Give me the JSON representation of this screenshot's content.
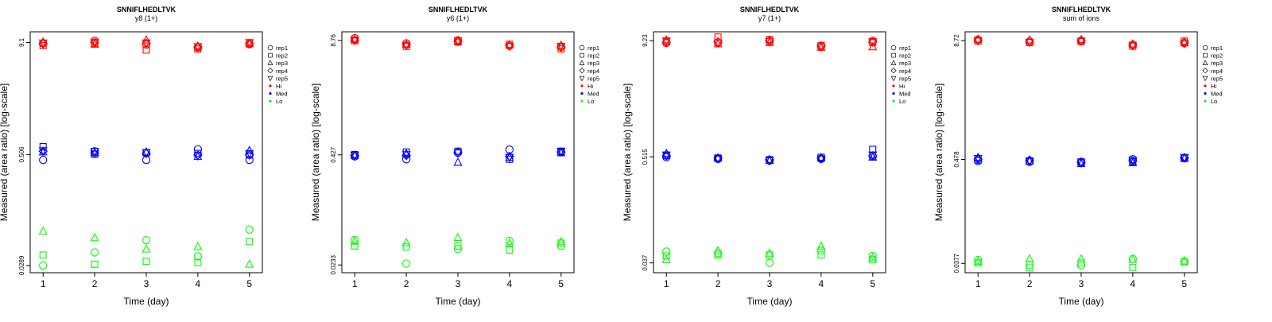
{
  "panels": [
    {
      "peptide": "SNNIFLHEDLTVK",
      "subtitle": "y8 (1+)",
      "tick_labels": [
        "0.0289",
        "0.506",
        "9.1"
      ]
    },
    {
      "peptide": "SNNIFLHEDLTVK",
      "subtitle": "y6 (1+)",
      "tick_labels": [
        "0.0233",
        "0.427",
        "8.76"
      ]
    },
    {
      "peptide": "SNNIFLHEDLTVK",
      "subtitle": "y7 (1+)",
      "tick_labels": [
        "0.037",
        "0.515",
        "9.23"
      ]
    },
    {
      "peptide": "SNNIFLHEDLTVK",
      "subtitle": "sum of ions",
      "tick_labels": [
        "0.0377",
        "0.478",
        "8.72"
      ]
    }
  ],
  "legend": {
    "replicates": [
      {
        "label": "rep1",
        "symbol": "circle"
      },
      {
        "label": "rep2",
        "symbol": "square"
      },
      {
        "label": "rep3",
        "symbol": "triangle"
      },
      {
        "label": "rep4",
        "symbol": "diamond"
      },
      {
        "label": "rep5",
        "symbol": "triangle-down"
      }
    ],
    "levels": [
      {
        "label": "Hi",
        "color": "#ff0000"
      },
      {
        "label": "Med",
        "color": "#0000ff"
      },
      {
        "label": "Lo",
        "color": "#00ff00"
      }
    ]
  },
  "chart_data": [
    {
      "type": "scatter",
      "title": "SNNIFLHEDLTVK",
      "subtitle": "y8 (1+)",
      "xlabel": "Time (day)",
      "ylabel": "Measured (area ratio) [log-scale]",
      "x_ticks": [
        1,
        2,
        3,
        4,
        5
      ],
      "y_ticks": [
        0.0289,
        0.506,
        9.1
      ],
      "ylim": [
        0.024,
        12.0
      ],
      "xlim": [
        0.75,
        5.25
      ],
      "series": [
        {
          "name": "Hi",
          "level": "Hi",
          "points": [
            {
              "rep": "rep1",
              "values": [
                8.9,
                9.5,
                8.6,
                8.0,
                8.7
              ]
            },
            {
              "rep": "rep2",
              "values": [
                8.4,
                8.9,
                7.5,
                7.7,
                9.0
              ]
            },
            {
              "rep": "rep3",
              "values": [
                9.2,
                8.7,
                9.7,
                8.3,
                8.8
              ]
            },
            {
              "rep": "rep4",
              "values": [
                8.8,
                9.1,
                8.9,
                8.1,
                8.9
              ]
            },
            {
              "rep": "rep5",
              "values": [
                9.0,
                9.2,
                9.0,
                8.2,
                9.1
              ]
            }
          ]
        },
        {
          "name": "Med",
          "level": "Med",
          "points": [
            {
              "rep": "rep1",
              "values": [
                0.44,
                0.55,
                0.44,
                0.58,
                0.44
              ]
            },
            {
              "rep": "rep2",
              "values": [
                0.62,
                0.51,
                0.53,
                0.52,
                0.5
              ]
            },
            {
              "rep": "rep3",
              "values": [
                0.54,
                0.53,
                0.54,
                0.48,
                0.56
              ]
            },
            {
              "rep": "rep4",
              "values": [
                0.55,
                0.52,
                0.52,
                0.5,
                0.5
              ]
            },
            {
              "rep": "rep5",
              "values": [
                0.56,
                0.55,
                0.53,
                0.49,
                0.52
              ]
            }
          ]
        },
        {
          "name": "Lo",
          "level": "Lo",
          "points": [
            {
              "rep": "rep1",
              "values": [
                0.0289,
                0.0405,
                0.0555,
                0.0365,
                0.073
              ]
            },
            {
              "rep": "rep2",
              "values": [
                0.0378,
                0.0298,
                0.0322,
                0.0312,
                0.0535
              ]
            },
            {
              "rep": "rep3",
              "values": [
                0.07,
                0.059,
                0.044,
                0.047,
                0.0298
              ]
            }
          ]
        }
      ]
    },
    {
      "type": "scatter",
      "title": "SNNIFLHEDLTVK",
      "subtitle": "y6 (1+)",
      "xlabel": "Time (day)",
      "ylabel": "Measured (area ratio) [log-scale]",
      "x_ticks": [
        1,
        2,
        3,
        4,
        5
      ],
      "y_ticks": [
        0.0233,
        0.427,
        8.76
      ],
      "ylim": [
        0.019,
        11.0
      ],
      "xlim": [
        0.75,
        5.25
      ],
      "series": [
        {
          "name": "Hi",
          "level": "Hi",
          "points": [
            {
              "rep": "rep1",
              "values": [
                9.3,
                8.1,
                8.8,
                7.6,
                7.4
              ]
            },
            {
              "rep": "rep2",
              "values": [
                8.7,
                7.5,
                8.4,
                7.9,
                7.0
              ]
            },
            {
              "rep": "rep3",
              "values": [
                9.0,
                7.9,
                8.6,
                7.8,
                7.7
              ]
            },
            {
              "rep": "rep4",
              "values": [
                8.8,
                7.8,
                8.5,
                7.7,
                7.3
              ]
            },
            {
              "rep": "rep5",
              "values": [
                8.9,
                7.7,
                8.7,
                7.5,
                7.5
              ]
            }
          ]
        },
        {
          "name": "Med",
          "level": "Med",
          "points": [
            {
              "rep": "rep1",
              "values": [
                0.41,
                0.38,
                0.45,
                0.49,
                0.46
              ]
            },
            {
              "rep": "rep2",
              "values": [
                0.43,
                0.46,
                0.47,
                0.38,
                0.47
              ]
            },
            {
              "rep": "rep3",
              "values": [
                0.42,
                0.44,
                0.35,
                0.4,
                0.45
              ]
            },
            {
              "rep": "rep4",
              "values": [
                0.42,
                0.42,
                0.46,
                0.41,
                0.46
              ]
            },
            {
              "rep": "rep5",
              "values": [
                0.42,
                0.43,
                0.45,
                0.4,
                0.47
              ]
            }
          ]
        },
        {
          "name": "Lo",
          "level": "Lo",
          "points": [
            {
              "rep": "rep1",
              "values": [
                0.045,
                0.0242,
                0.0355,
                0.044,
                0.0385
              ]
            },
            {
              "rep": "rep2",
              "values": [
                0.0385,
                0.0375,
                0.0385,
                0.0345,
                0.0415
              ]
            },
            {
              "rep": "rep3",
              "values": [
                0.0435,
                0.042,
                0.048,
                0.0415,
                0.043
              ]
            }
          ]
        }
      ]
    },
    {
      "type": "scatter",
      "title": "SNNIFLHEDLTVK",
      "subtitle": "y7 (1+)",
      "xlabel": "Time (day)",
      "ylabel": "Measured (area ratio) [log-scale]",
      "x_ticks": [
        1,
        2,
        3,
        4,
        5
      ],
      "y_ticks": [
        0.037,
        0.515,
        9.23
      ],
      "ylim": [
        0.029,
        11.5
      ],
      "xlim": [
        0.75,
        5.25
      ],
      "series": [
        {
          "name": "Hi",
          "level": "Hi",
          "points": [
            {
              "rep": "rep1",
              "values": [
                8.7,
                8.8,
                9.1,
                8.0,
                9.2
              ]
            },
            {
              "rep": "rep2",
              "values": [
                9.0,
                10.1,
                9.5,
                8.2,
                8.8
              ]
            },
            {
              "rep": "rep3",
              "values": [
                9.4,
                8.5,
                8.8,
                7.8,
                7.9
              ]
            },
            {
              "rep": "rep4",
              "values": [
                8.9,
                9.0,
                9.3,
                8.1,
                8.9
              ]
            },
            {
              "rep": "rep5",
              "values": [
                9.2,
                8.7,
                9.0,
                7.9,
                9.0
              ]
            }
          ]
        },
        {
          "name": "Med",
          "level": "Med",
          "points": [
            {
              "rep": "rep1",
              "values": [
                0.51,
                0.49,
                0.47,
                0.49,
                0.52
              ]
            },
            {
              "rep": "rep2",
              "values": [
                0.53,
                0.5,
                0.48,
                0.51,
                0.62
              ]
            },
            {
              "rep": "rep3",
              "values": [
                0.56,
                0.5,
                0.47,
                0.5,
                0.51
              ]
            },
            {
              "rep": "rep4",
              "values": [
                0.53,
                0.5,
                0.48,
                0.5,
                0.53
              ]
            },
            {
              "rep": "rep5",
              "values": [
                0.54,
                0.49,
                0.47,
                0.49,
                0.54
              ]
            }
          ]
        },
        {
          "name": "Lo",
          "level": "Lo",
          "points": [
            {
              "rep": "rep1",
              "values": [
                0.049,
                0.047,
                0.037,
                0.05,
                0.044
              ]
            },
            {
              "rep": "rep2",
              "values": [
                0.044,
                0.045,
                0.045,
                0.045,
                0.04
              ]
            },
            {
              "rep": "rep3",
              "values": [
                0.04,
                0.05,
                0.047,
                0.056,
                0.042
              ]
            }
          ]
        }
      ]
    },
    {
      "type": "scatter",
      "title": "SNNIFLHEDLTVK",
      "subtitle": "sum of ions",
      "xlabel": "Time (day)",
      "ylabel": "Measured (area ratio) [log-scale]",
      "x_ticks": [
        1,
        2,
        3,
        4,
        5
      ],
      "y_ticks": [
        0.0377,
        0.478,
        8.72
      ],
      "ylim": [
        0.03,
        10.8
      ],
      "xlim": [
        0.75,
        5.25
      ],
      "series": [
        {
          "name": "Hi",
          "level": "Hi",
          "points": [
            {
              "rep": "rep1",
              "values": [
                8.9,
                8.5,
                8.7,
                7.9,
                8.2
              ]
            },
            {
              "rep": "rep2",
              "values": [
                8.6,
                8.3,
                8.5,
                7.6,
                8.6
              ]
            },
            {
              "rep": "rep3",
              "values": [
                9.0,
                8.8,
                8.9,
                8.0,
                8.3
              ]
            },
            {
              "rep": "rep4",
              "values": [
                8.8,
                8.6,
                8.7,
                7.8,
                8.4
              ]
            },
            {
              "rep": "rep5",
              "values": [
                8.7,
                8.4,
                8.6,
                7.7,
                8.1
              ]
            }
          ]
        },
        {
          "name": "Med",
          "level": "Med",
          "points": [
            {
              "rep": "rep1",
              "values": [
                0.46,
                0.45,
                0.44,
                0.48,
                0.49
              ]
            },
            {
              "rep": "rep2",
              "values": [
                0.47,
                0.46,
                0.45,
                0.45,
                0.5
              ]
            },
            {
              "rep": "rep3",
              "values": [
                0.5,
                0.46,
                0.43,
                0.44,
                0.49
              ]
            },
            {
              "rep": "rep4",
              "values": [
                0.48,
                0.47,
                0.45,
                0.46,
                0.5
              ]
            },
            {
              "rep": "rep5",
              "values": [
                0.49,
                0.46,
                0.44,
                0.47,
                0.5
              ]
            }
          ]
        },
        {
          "name": "Lo",
          "level": "Lo",
          "points": [
            {
              "rep": "rep1",
              "values": [
                0.041,
                0.0362,
                0.036,
                0.042,
                0.0395
              ]
            },
            {
              "rep": "rep2",
              "values": [
                0.038,
                0.0338,
                0.038,
                0.0342,
                0.039
              ]
            },
            {
              "rep": "rep3",
              "values": [
                0.0395,
                0.042,
                0.042,
                0.0415,
                0.04
              ]
            }
          ]
        }
      ]
    }
  ]
}
